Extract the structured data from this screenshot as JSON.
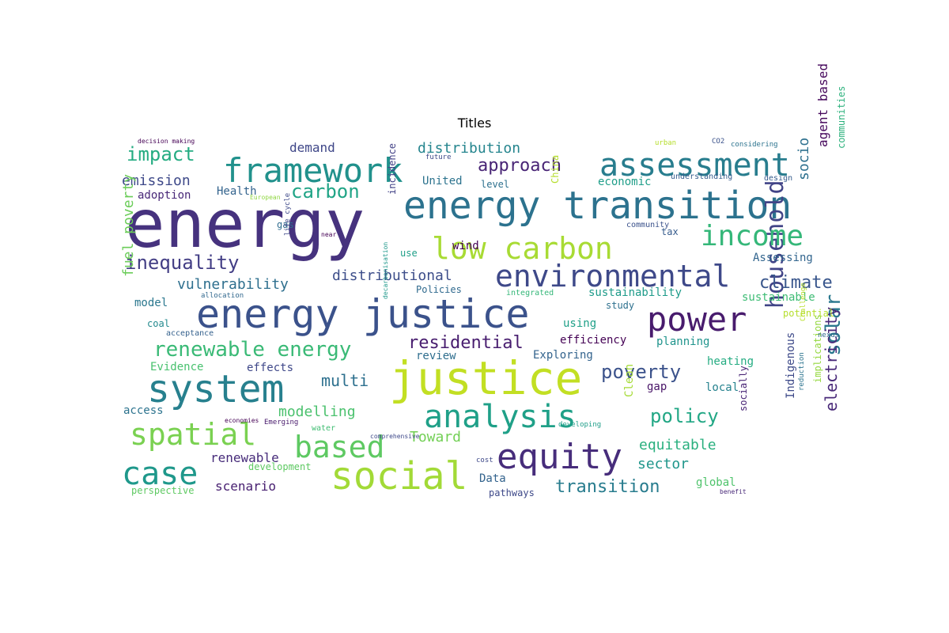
{
  "chart_data": {
    "type": "wordcloud",
    "title": "Titles",
    "words": [
      {
        "text": "energy",
        "color": "#46327e"
      },
      {
        "text": "energy transition",
        "color": "#2c728e"
      },
      {
        "text": "energy justice",
        "color": "#3b528b"
      },
      {
        "text": "justice",
        "color": "#c2df23"
      },
      {
        "text": "framework",
        "color": "#21918c"
      },
      {
        "text": "assessment",
        "color": "#287d8e"
      },
      {
        "text": "system",
        "color": "#27808e"
      },
      {
        "text": "social",
        "color": "#a2da37"
      },
      {
        "text": "analysis",
        "color": "#1fa088"
      },
      {
        "text": "equity",
        "color": "#472d7b"
      },
      {
        "text": "low carbon",
        "color": "#a8db34"
      },
      {
        "text": "environmental",
        "color": "#3e4989"
      },
      {
        "text": "household",
        "color": "#414487"
      },
      {
        "text": "power",
        "color": "#481b6d"
      },
      {
        "text": "income",
        "color": "#35b779"
      },
      {
        "text": "spatial",
        "color": "#7ad151"
      },
      {
        "text": "case",
        "color": "#1f988b"
      },
      {
        "text": "based",
        "color": "#5ec962"
      },
      {
        "text": "renewable energy",
        "color": "#3aba76"
      },
      {
        "text": "inequality",
        "color": "#433e85"
      },
      {
        "text": "carbon",
        "color": "#20a486"
      },
      {
        "text": "impact",
        "color": "#25ac82"
      },
      {
        "text": "approach",
        "color": "#482475"
      },
      {
        "text": "residential",
        "color": "#481d6f"
      },
      {
        "text": "policy",
        "color": "#22a785"
      },
      {
        "text": "poverty",
        "color": "#3b528b"
      },
      {
        "text": "solar",
        "color": "#2a788e"
      },
      {
        "text": "electricity",
        "color": "#482878"
      },
      {
        "text": "climate",
        "color": "#39568c"
      },
      {
        "text": "emission",
        "color": "#3e4989"
      },
      {
        "text": "multi",
        "color": "#2d708e"
      },
      {
        "text": "modelling",
        "color": "#4ac16d"
      },
      {
        "text": "vulnerability",
        "color": "#2e6f8e"
      },
      {
        "text": "distributional",
        "color": "#3d4e8a"
      },
      {
        "text": "distribution",
        "color": "#25858e"
      },
      {
        "text": "demand",
        "color": "#3f4788"
      },
      {
        "text": "fuel poverty",
        "color": "#6ccd5a"
      },
      {
        "text": "Toward",
        "color": "#73d056"
      },
      {
        "text": "equitable",
        "color": "#2ab07f"
      },
      {
        "text": "transition",
        "color": "#287c8e"
      },
      {
        "text": "sector",
        "color": "#1f968b"
      },
      {
        "text": "renewable",
        "color": "#472c7a"
      },
      {
        "text": "scenario",
        "color": "#482071"
      },
      {
        "text": "United",
        "color": "#2c738e"
      },
      {
        "text": "economic",
        "color": "#1f9e89"
      },
      {
        "text": "socio",
        "color": "#2d708e"
      },
      {
        "text": "agent based",
        "color": "#46085c"
      },
      {
        "text": "communities",
        "color": "#2db27d"
      },
      {
        "text": "adoption",
        "color": "#482878"
      },
      {
        "text": "Health",
        "color": "#33638d"
      },
      {
        "text": "wind",
        "color": "#440154"
      },
      {
        "text": "Assessing",
        "color": "#32658e"
      },
      {
        "text": "sustainable",
        "color": "#3dbc74"
      },
      {
        "text": "sustainability",
        "color": "#1e9b8a"
      },
      {
        "text": "potential",
        "color": "#b5de2b"
      },
      {
        "text": "model",
        "color": "#2a778e"
      },
      {
        "text": "coal",
        "color": "#23898e"
      },
      {
        "text": "acceptance",
        "color": "#34618d"
      },
      {
        "text": "using",
        "color": "#1fa088"
      },
      {
        "text": "efficiency",
        "color": "#440154"
      },
      {
        "text": "planning",
        "color": "#1f948c"
      },
      {
        "text": "study",
        "color": "#2d708e"
      },
      {
        "text": "review",
        "color": "#2e6e8e"
      },
      {
        "text": "Exploring",
        "color": "#33638d"
      },
      {
        "text": "heating",
        "color": "#25ac82"
      },
      {
        "text": "Evidence",
        "color": "#48c16e"
      },
      {
        "text": "effects",
        "color": "#3f4889"
      },
      {
        "text": "gap",
        "color": "#481467"
      },
      {
        "text": "local",
        "color": "#26828e"
      },
      {
        "text": "access",
        "color": "#2c738e"
      },
      {
        "text": "Clean",
        "color": "#a5db36"
      },
      {
        "text": "socially",
        "color": "#482475"
      },
      {
        "text": "Indigenous",
        "color": "#3e4a89"
      },
      {
        "text": "implications",
        "color": "#95d840"
      },
      {
        "text": "global",
        "color": "#4ec36b"
      },
      {
        "text": "Data",
        "color": "#33638d"
      },
      {
        "text": "pathways",
        "color": "#3e4989"
      },
      {
        "text": "development",
        "color": "#5ec962"
      },
      {
        "text": "perspective",
        "color": "#5ec962"
      },
      {
        "text": "gas",
        "color": "#2f6c8e"
      },
      {
        "text": "use",
        "color": "#1f9f88"
      },
      {
        "text": "Policies",
        "color": "#306a8e"
      },
      {
        "text": "tax",
        "color": "#365c8d"
      },
      {
        "text": "level",
        "color": "#2d708e"
      },
      {
        "text": "China",
        "color": "#b5de2b"
      },
      {
        "text": "incidence",
        "color": "#424186"
      },
      {
        "text": "integrated",
        "color": "#35b779"
      },
      {
        "text": "community",
        "color": "#3b528b"
      },
      {
        "text": "understanding",
        "color": "#365c8d"
      },
      {
        "text": "design",
        "color": "#365c8d"
      },
      {
        "text": "considering",
        "color": "#2c738e"
      },
      {
        "text": "urban",
        "color": "#b5de2b"
      },
      {
        "text": "CO2",
        "color": "#3b528b"
      },
      {
        "text": "future",
        "color": "#3e4989"
      },
      {
        "text": "decision making",
        "color": "#440154"
      },
      {
        "text": "European",
        "color": "#90d743"
      },
      {
        "text": "life cycle",
        "color": "#3e4989"
      },
      {
        "text": "allocation",
        "color": "#31688e"
      },
      {
        "text": "decarbonisation",
        "color": "#1f988b"
      },
      {
        "text": "economies",
        "color": "#440154"
      },
      {
        "text": "Emerging",
        "color": "#481a6c"
      },
      {
        "text": "water",
        "color": "#40bd72"
      },
      {
        "text": "comprehensive",
        "color": "#3e4989"
      },
      {
        "text": "developing",
        "color": "#1f9e89"
      },
      {
        "text": "reduction",
        "color": "#2c738e"
      },
      {
        "text": "Challenge",
        "color": "#b8de29"
      },
      {
        "text": "nexus",
        "color": "#31688e"
      },
      {
        "text": "cost",
        "color": "#3e4989"
      },
      {
        "text": "benefit",
        "color": "#482878"
      },
      {
        "text": "near",
        "color": "#440154"
      }
    ]
  }
}
